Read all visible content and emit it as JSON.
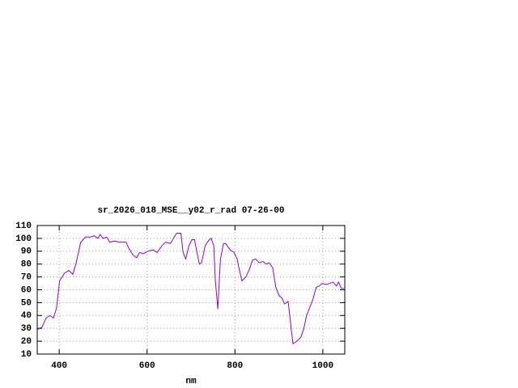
{
  "chart_data": {
    "type": "line",
    "title": "sr_2026_018_MSE__y02_r_rad 07-26-00",
    "xlabel": "nm",
    "color": "#9400d3",
    "x": [
      350,
      361,
      370,
      379,
      387,
      394,
      401,
      412,
      422,
      431,
      438,
      449,
      460,
      471,
      480,
      488,
      493,
      500,
      508,
      515,
      526,
      537,
      552,
      559,
      568,
      576,
      583,
      592,
      601,
      614,
      623,
      633,
      642,
      653,
      660,
      667,
      677,
      682,
      688,
      695,
      702,
      708,
      713,
      719,
      724,
      732,
      739,
      746,
      752,
      755,
      761,
      767,
      774,
      779,
      789,
      798,
      805,
      811,
      816,
      825,
      833,
      840,
      847,
      855,
      864,
      871,
      878,
      886,
      893,
      901,
      906,
      913,
      921,
      926,
      932,
      941,
      950,
      957,
      963,
      970,
      977,
      985,
      992,
      999,
      1007,
      1016,
      1023,
      1031,
      1036,
      1042,
      1048
    ],
    "values": [
      29,
      31,
      38,
      40,
      38,
      46,
      67,
      73,
      75,
      72,
      80,
      97,
      101,
      101,
      102,
      100,
      103,
      100,
      101,
      97,
      98,
      97,
      97,
      92,
      87,
      85,
      89,
      88,
      90,
      91,
      89,
      94,
      97,
      96,
      100,
      104,
      104,
      89,
      84,
      94,
      99,
      99,
      90,
      80,
      81,
      94,
      98,
      100,
      94,
      69,
      45,
      84,
      96,
      96,
      91,
      89,
      84,
      74,
      67,
      70,
      76,
      83,
      84,
      81,
      82,
      80,
      81,
      77,
      62,
      55,
      54,
      49,
      51,
      36,
      18,
      20,
      23,
      30,
      40,
      46,
      52,
      62,
      63,
      65,
      64,
      65,
      66,
      63,
      66,
      61,
      61
    ],
    "xlim": [
      350,
      1050
    ],
    "ylim": [
      10,
      110
    ],
    "xticks": [
      400,
      600,
      800,
      1000
    ],
    "yticks": [
      10,
      20,
      30,
      40,
      50,
      60,
      70,
      80,
      90,
      100,
      110
    ],
    "grid": true
  }
}
